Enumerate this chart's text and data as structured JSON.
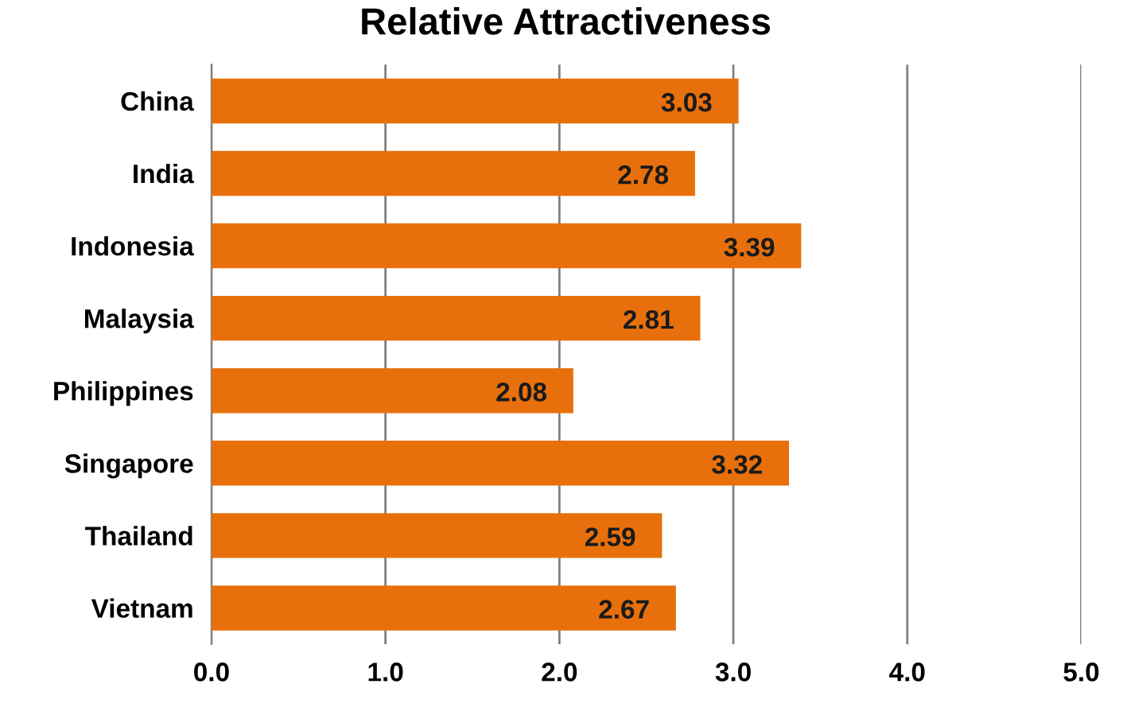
{
  "chart_data": {
    "type": "bar",
    "orientation": "horizontal",
    "title": "Relative Attractiveness",
    "categories": [
      "China",
      "India",
      "Indonesia",
      "Malaysia",
      "Philippines",
      "Singapore",
      "Thailand",
      "Vietnam"
    ],
    "values": [
      3.03,
      2.78,
      3.39,
      2.81,
      2.08,
      3.32,
      2.59,
      2.67
    ],
    "color": "#e8700c",
    "xlim": [
      0,
      5
    ],
    "xticks": [
      {
        "value": 0,
        "label": "0.0"
      },
      {
        "value": 1,
        "label": "1.0"
      },
      {
        "value": 2,
        "label": "2.0"
      },
      {
        "value": 3,
        "label": "3.0"
      },
      {
        "value": 4,
        "label": "4.0"
      },
      {
        "value": 5,
        "label": "5.0"
      }
    ],
    "grid": "x",
    "data_labels": true
  }
}
